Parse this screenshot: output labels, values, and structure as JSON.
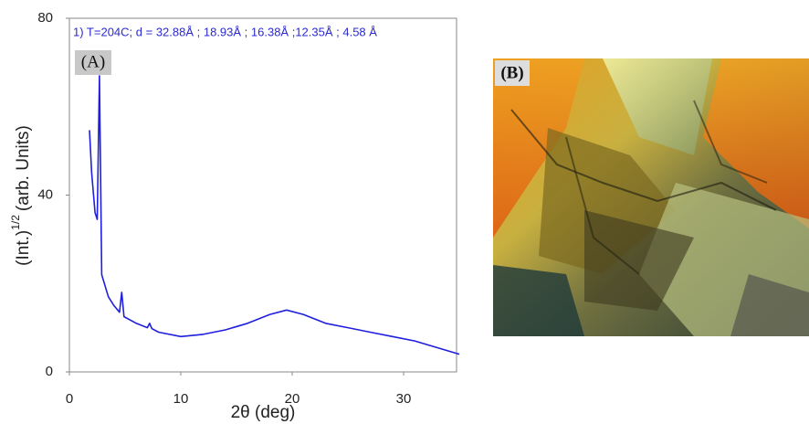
{
  "chart_data": {
    "type": "line",
    "annotation": "1) T=204C; d = 32.88Å ; 18.93Å ; 16.38Å ;12.35Å ; 4.58 Å",
    "panel_labels": [
      "(A)",
      "(B)"
    ],
    "xlabel": "2θ (deg)",
    "ylabel": {
      "main": "(Int.)",
      "superscript": "1/2",
      "suffix": "(arb. Units)"
    },
    "x": [
      1.8,
      2.0,
      2.3,
      2.5,
      2.7,
      2.9,
      3.5,
      4.0,
      4.5,
      4.7,
      4.9,
      6,
      7,
      7.2,
      7.4,
      8,
      10,
      12,
      14,
      16,
      18,
      19.5,
      21,
      23,
      25,
      27,
      29,
      31,
      33,
      35
    ],
    "series": [
      {
        "color": "#1f1fdc",
        "values": [
          54.7,
          45,
          36,
          34.5,
          67,
          22,
          17,
          15,
          13.5,
          18,
          12.5,
          11,
          10,
          11,
          9.8,
          9,
          8,
          8.5,
          9.5,
          11,
          13,
          14,
          13,
          11,
          10,
          9,
          8,
          7,
          5.5,
          4
        ]
      }
    ],
    "xlim": [
      0,
      35
    ],
    "ylim": [
      0,
      80
    ],
    "xticks": [
      0,
      10,
      20,
      30
    ],
    "yticks": [
      0,
      40,
      80
    ]
  }
}
